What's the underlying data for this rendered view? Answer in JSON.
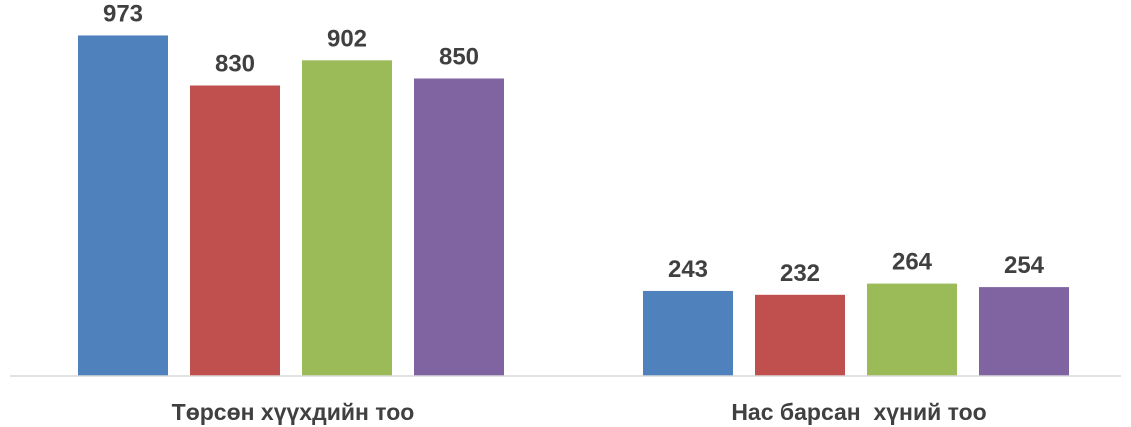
{
  "chart_data": {
    "type": "bar",
    "categories": [
      "Төрсөн хүүхдийн тоо",
      "Нас барсан  хүний тоо"
    ],
    "series": [
      {
        "values": [
          973,
          243
        ],
        "color": "#4F81BD"
      },
      {
        "values": [
          830,
          232
        ],
        "color": "#C0504D"
      },
      {
        "values": [
          902,
          264
        ],
        "color": "#9BBB59"
      },
      {
        "values": [
          850,
          254
        ],
        "color": "#8064A2"
      }
    ],
    "data_labels": true,
    "grid": false,
    "legend": "none",
    "ylim": [
      0,
      1000
    ]
  }
}
